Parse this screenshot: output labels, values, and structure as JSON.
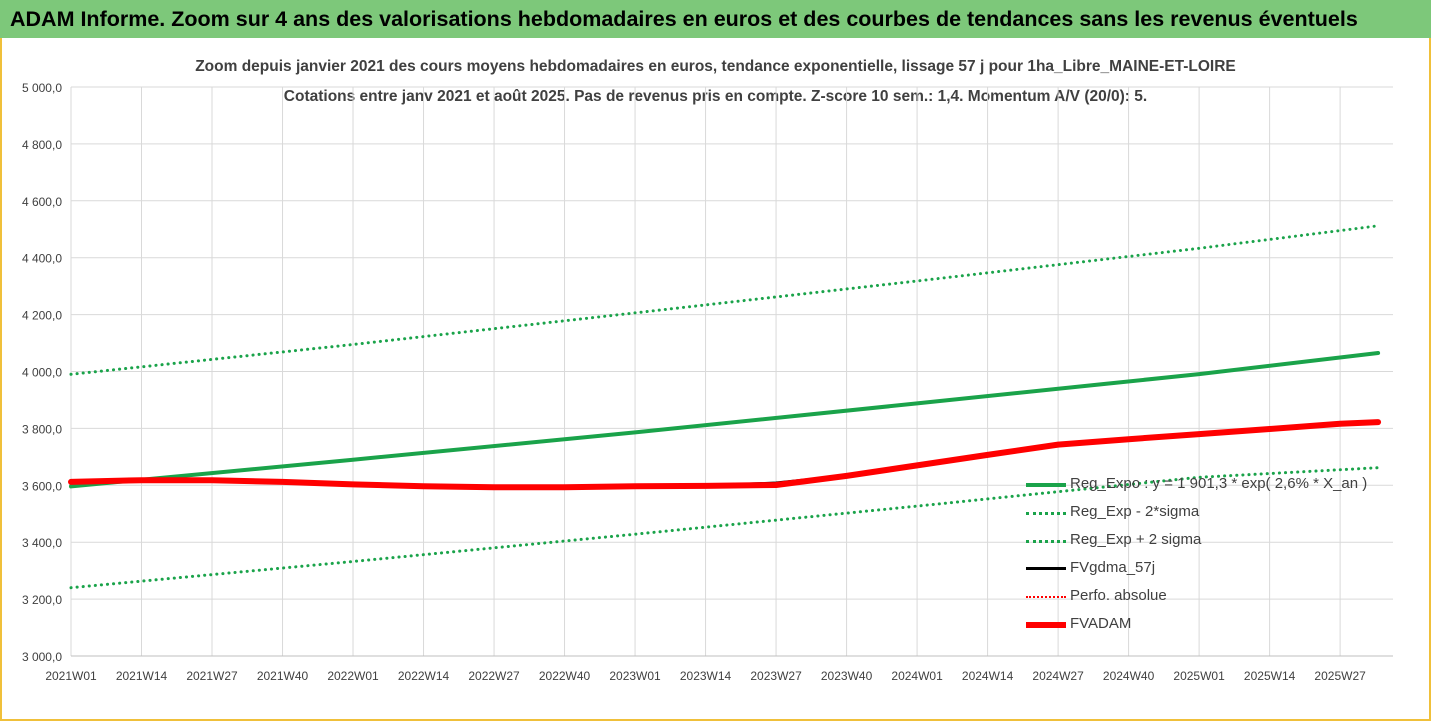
{
  "banner": {
    "title": "ADAM Informe. Zoom sur 4 ans des valorisations hebdomadaires en euros et des courbes de tendances sans les revenus éventuels"
  },
  "chart_data": {
    "type": "line",
    "title": "Zoom depuis janvier 2021 des cours moyens hebdomadaires en euros, tendance exponentielle, lissage 57 j pour 1ha_Libre_MAINE-ET-LOIRE",
    "subtitle": "Cotations entre janv 2021 et août 2025.  Pas de revenus pris en compte. Z-score 10 sem.: 1,4. Momentum A/V (20/0): 5.",
    "xlabel": "",
    "ylabel": "",
    "ylim": [
      3000,
      5000
    ],
    "y_ticks": [
      "3 000,0",
      "3 200,0",
      "3 400,0",
      "3 600,0",
      "3 800,0",
      "4 000,0",
      "4 200,0",
      "4 400,0",
      "4 600,0",
      "4 800,0",
      "5 000,0"
    ],
    "x_ticks": [
      "2021W01",
      "2021W14",
      "2021W27",
      "2021W40",
      "2022W01",
      "2022W14",
      "2022W27",
      "2022W40",
      "2023W01",
      "2023W14",
      "2023W27",
      "2023W40",
      "2024W01",
      "2024W14",
      "2024W27",
      "2024W40",
      "2025W01",
      "2025W14",
      "2025W27"
    ],
    "grid": true,
    "legend_position": "bottom-right",
    "series": [
      {
        "name": "Reg_Expo : y = 1 901,3 * exp( 2,6% *  X_an )",
        "color": "#1aa34a",
        "style": "solid",
        "x": [
          "2021W01",
          "2022W01",
          "2023W01",
          "2024W01",
          "2025W01",
          "2025W34"
        ],
        "values": [
          3596,
          3690,
          3786,
          3888,
          3991,
          4065
        ]
      },
      {
        "name": "Reg_Exp - 2*sigma",
        "color": "#1aa34a",
        "style": "dotted",
        "x": [
          "2021W01",
          "2022W01",
          "2023W01",
          "2024W01",
          "2025W01",
          "2025W34"
        ],
        "values": [
          3240,
          3332,
          3428,
          3527,
          3628,
          3662
        ]
      },
      {
        "name": "Reg_Exp + 2 sigma",
        "color": "#1aa34a",
        "style": "dotted",
        "x": [
          "2021W01",
          "2022W01",
          "2023W01",
          "2024W01",
          "2025W01",
          "2025W34"
        ],
        "values": [
          3990,
          4095,
          4206,
          4318,
          4433,
          4512
        ]
      },
      {
        "name": "FVgdma_57j",
        "color": "#000000",
        "style": "solid",
        "x": [
          "2021W01",
          "2021W14",
          "2021W27",
          "2021W40",
          "2022W01",
          "2022W14",
          "2022W27",
          "2022W40",
          "2023W01",
          "2023W14",
          "2023W27",
          "2023W40",
          "2024W01",
          "2024W14",
          "2024W27",
          "2024W40",
          "2025W01",
          "2025W14",
          "2025W27",
          "2025W34"
        ],
        "values": [
          3612,
          3618,
          3618,
          3612,
          3603,
          3597,
          3593,
          3593,
          3597,
          3598,
          3607,
          3633,
          3670,
          3707,
          3743,
          3762,
          3780,
          3798,
          3816,
          3822
        ]
      },
      {
        "name": "Perfo. absolue",
        "color": "#ff0000",
        "style": "dotted",
        "x": [],
        "values": []
      },
      {
        "name": "FVADAM",
        "color": "#ff0000",
        "style": "solid",
        "x": [
          "2021W01",
          "2021W14",
          "2021W27",
          "2021W40",
          "2022W01",
          "2022W14",
          "2022W27",
          "2022W40",
          "2023W01",
          "2023W14",
          "2023W27",
          "2023W40",
          "2024W01",
          "2024W14",
          "2024W27",
          "2024W40",
          "2025W01",
          "2025W14",
          "2025W27",
          "2025W34"
        ],
        "values": [
          3612,
          3618,
          3618,
          3612,
          3603,
          3597,
          3593,
          3593,
          3597,
          3598,
          3601,
          3633,
          3670,
          3707,
          3743,
          3762,
          3780,
          3798,
          3816,
          3822
        ]
      }
    ]
  }
}
